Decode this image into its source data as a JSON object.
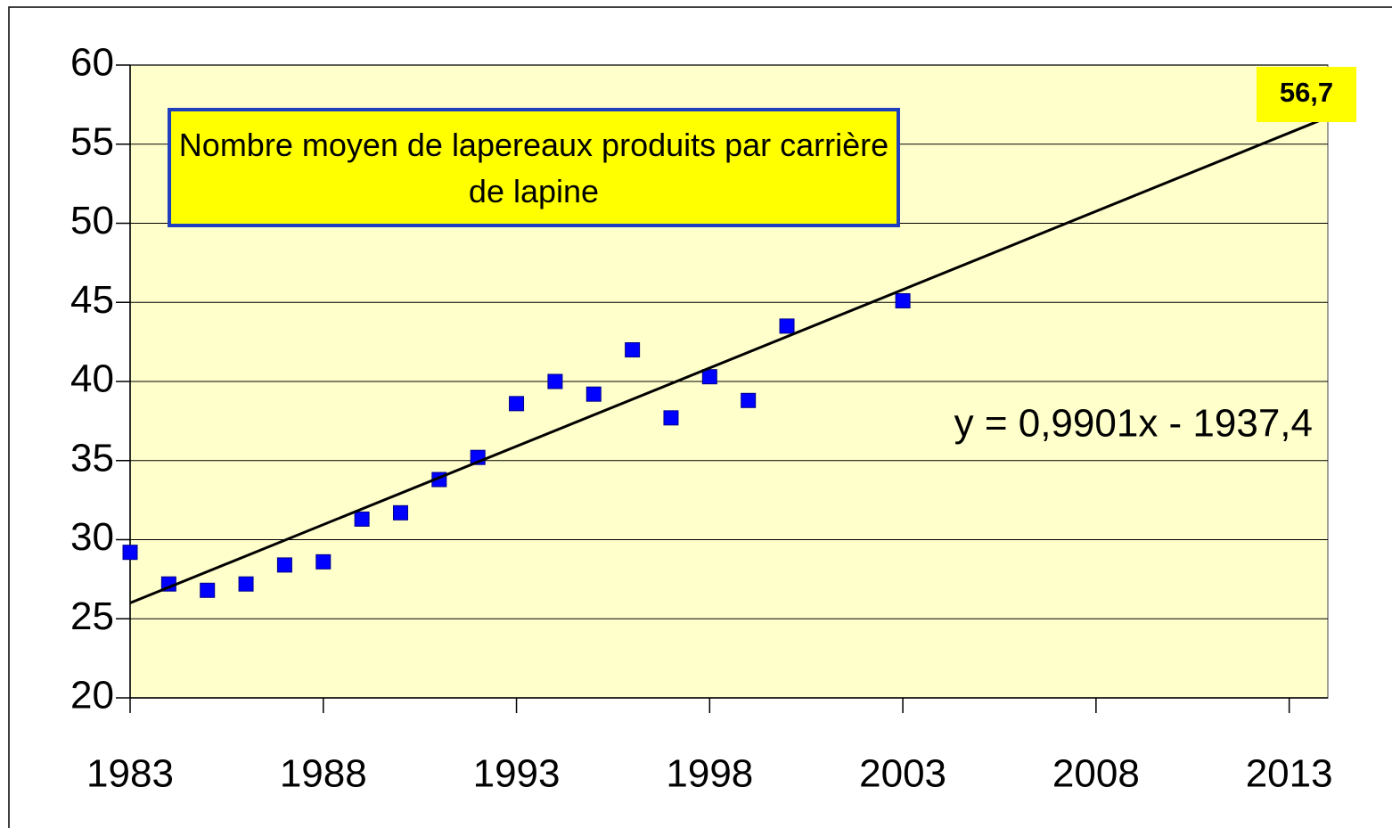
{
  "chart_data": {
    "type": "scatter",
    "title": "Nombre moyen de lapereaux produits par carrière de lapine",
    "x": [
      1983,
      1984,
      1985,
      1986,
      1987,
      1988,
      1989,
      1990,
      1991,
      1992,
      1993,
      1994,
      1995,
      1996,
      1997,
      1998,
      1999,
      2000,
      2003
    ],
    "series": [
      {
        "color": "#0000ff",
        "values": [
          29.2,
          27.2,
          26.8,
          27.2,
          28.4,
          28.6,
          31.3,
          31.7,
          33.8,
          35.2,
          38.6,
          40.0,
          39.2,
          42.0,
          37.7,
          40.3,
          38.8,
          43.5,
          45.1
        ]
      }
    ],
    "trendline": {
      "x": [
        1983,
        2014
      ],
      "values": [
        26.0,
        56.7
      ],
      "value_labels": [
        null,
        "56,7"
      ],
      "color": "#000000"
    },
    "annotation": "y = 0,9901x - 1937,4",
    "xlim": [
      1983,
      2014
    ],
    "xticks": [
      1983,
      1988,
      1993,
      1998,
      2003,
      2008,
      2013
    ],
    "ylim": [
      20,
      60
    ],
    "yticks": [
      20,
      25,
      30,
      35,
      40,
      45,
      50,
      55,
      60
    ],
    "grid": true,
    "plot_background": "#ffffcc"
  }
}
